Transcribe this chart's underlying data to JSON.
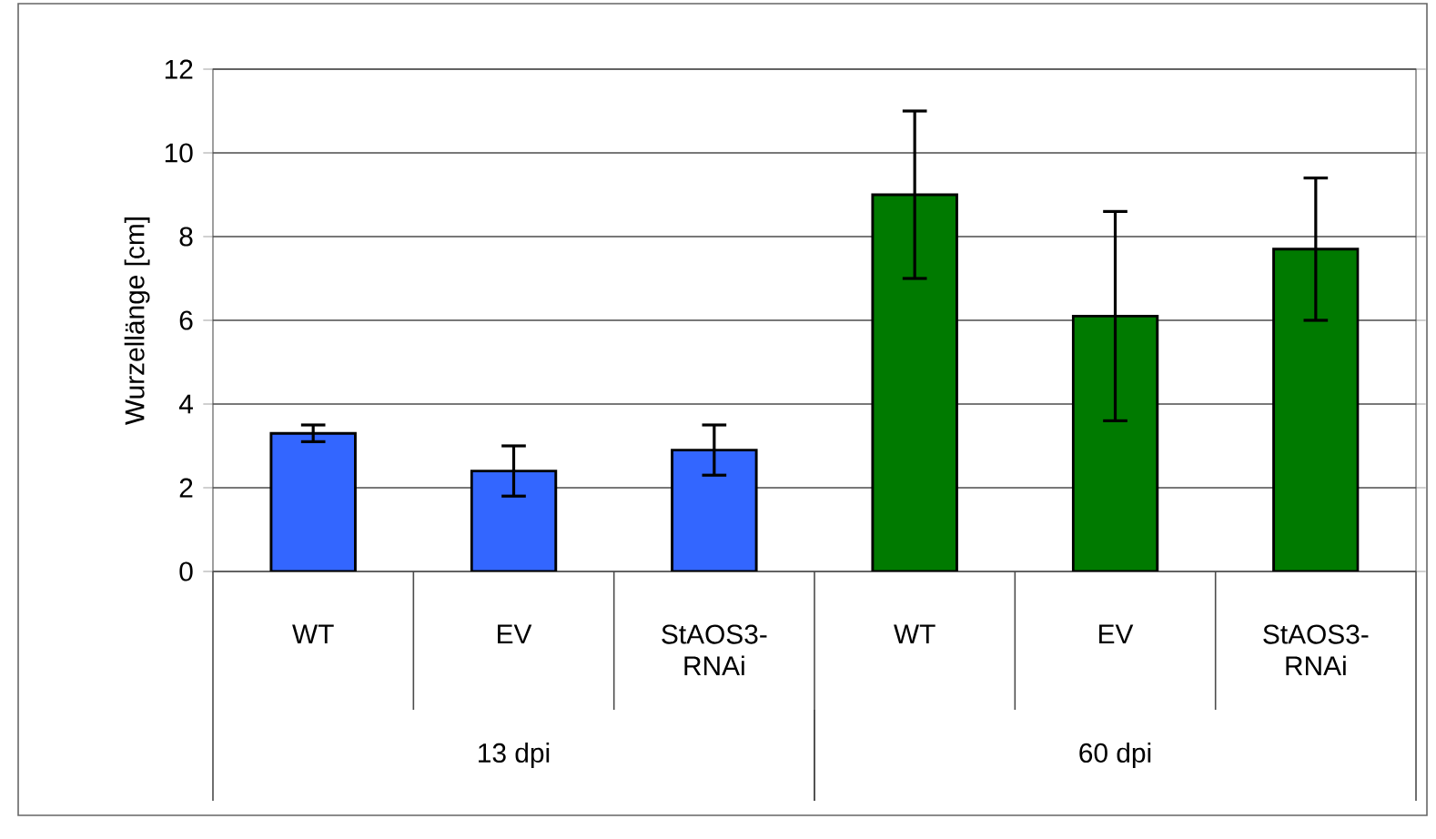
{
  "chart_data": {
    "type": "bar",
    "ylabel": "Wurzellänge [cm]",
    "categories": [
      "WT",
      "EV",
      "StAOS3-RNAi",
      "WT",
      "EV",
      "StAOS3-RNAi"
    ],
    "values": [
      3.3,
      2.4,
      2.9,
      9.0,
      6.1,
      7.7
    ],
    "errors": [
      0.2,
      0.6,
      0.6,
      2.0,
      2.5,
      1.7
    ],
    "colors": [
      "#3366ff",
      "#3366ff",
      "#3366ff",
      "#007a00",
      "#007a00",
      "#007a00"
    ],
    "annotations": [
      "13 dpi",
      "60 dpi"
    ],
    "ylim": [
      0,
      12
    ],
    "yticks": [
      0,
      2,
      4,
      6,
      8,
      10,
      12
    ],
    "grid": "y"
  }
}
